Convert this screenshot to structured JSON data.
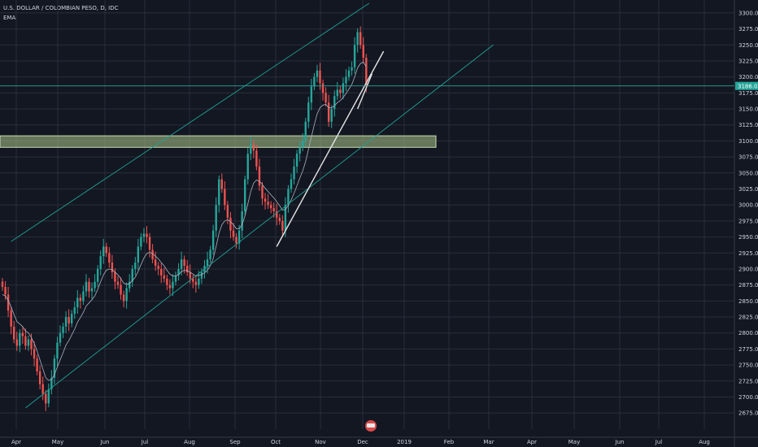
{
  "chart_data": {
    "type": "candlestick",
    "title": "U.S. DOLLAR / COLOMBIAN PESO, D, IDC",
    "indicator": "EMA",
    "y_ticks": [
      2675,
      2700,
      2725,
      2750,
      2775,
      2800,
      2825,
      2850,
      2875,
      2900,
      2925,
      2950,
      2975,
      3000,
      3025,
      3050,
      3075,
      3100,
      3125,
      3150,
      3175,
      3200,
      3225,
      3250,
      3275,
      3300
    ],
    "y_tick_labels": [
      "2675.00",
      "2700.00",
      "2725.00",
      "2750.00",
      "2775.00",
      "2800.00",
      "2825.00",
      "2850.00",
      "2875.00",
      "2900.00",
      "2925.00",
      "2950.00",
      "2975.00",
      "3000.00",
      "3025.00",
      "3050.00",
      "3075.00",
      "3100.00",
      "3125.00",
      "3150.00",
      "3175.00",
      "3200.00",
      "3225.00",
      "3250.00",
      "3275.00",
      "3300.00"
    ],
    "ylim": [
      2660,
      3310
    ],
    "x_labels": [
      "Apr",
      "May",
      "Jun",
      "Jul",
      "Aug",
      "Sep",
      "Oct",
      "Nov",
      "Dec",
      "2019",
      "Feb",
      "Mar",
      "Apr",
      "May",
      "Jun",
      "Jul",
      "Aug"
    ],
    "last_price": 3186.0,
    "last_price_label": "3186.00",
    "close": [
      2872,
      2860,
      2835,
      2810,
      2790,
      2780,
      2800,
      2795,
      2780,
      2790,
      2775,
      2760,
      2740,
      2720,
      2705,
      2690,
      2712,
      2730,
      2760,
      2785,
      2800,
      2810,
      2825,
      2815,
      2830,
      2840,
      2855,
      2850,
      2865,
      2880,
      2865,
      2870,
      2880,
      2900,
      2920,
      2935,
      2925,
      2910,
      2895,
      2880,
      2875,
      2860,
      2850,
      2870,
      2880,
      2900,
      2910,
      2935,
      2950,
      2955,
      2950,
      2930,
      2915,
      2905,
      2900,
      2890,
      2885,
      2875,
      2870,
      2880,
      2890,
      2900,
      2915,
      2905,
      2895,
      2885,
      2880,
      2875,
      2885,
      2895,
      2905,
      2915,
      2930,
      2960,
      3000,
      3040,
      3025,
      3000,
      2980,
      2960,
      2950,
      2940,
      2960,
      2990,
      3040,
      3080,
      3095,
      3085,
      3060,
      3030,
      3010,
      3005,
      3000,
      2995,
      2990,
      2980,
      2975,
      2960,
      3000,
      3025,
      3040,
      3060,
      3080,
      3090,
      3100,
      3130,
      3160,
      3185,
      3200,
      3210,
      3190,
      3175,
      3160,
      3130,
      3150,
      3170,
      3180,
      3175,
      3190,
      3200,
      3210,
      3215,
      3250,
      3270,
      3250,
      3230,
      3186
    ],
    "ema": [
      2860,
      2858,
      2851,
      2841,
      2829,
      2818,
      2814,
      2810,
      2803,
      2800,
      2793,
      2784,
      2772,
      2758,
      2744,
      2730,
      2726,
      2727,
      2735,
      2747,
      2758,
      2769,
      2781,
      2788,
      2797,
      2806,
      2817,
      2824,
      2832,
      2842,
      2847,
      2852,
      2858,
      2868,
      2880,
      2891,
      2898,
      2900,
      2899,
      2895,
      2891,
      2885,
      2878,
      2876,
      2877,
      2882,
      2887,
      2896,
      2907,
      2917,
      2924,
      2926,
      2924,
      2920,
      2916,
      2910,
      2905,
      2898,
      2892,
      2889,
      2889,
      2891,
      2896,
      2898,
      2897,
      2895,
      2892,
      2889,
      2890,
      2891,
      2894,
      2898,
      2905,
      2916,
      2935,
      2956,
      2969,
      2975,
      2977,
      2974,
      2969,
      2963,
      2963,
      2969,
      2983,
      3002,
      3021,
      3034,
      3039,
      3037,
      3032,
      3026,
      3021,
      3016,
      3011,
      3005,
      2999,
      2992,
      2993,
      2999,
      3008,
      3018,
      3030,
      3042,
      3053,
      3068,
      3087,
      3106,
      3125,
      3142,
      3152,
      3156,
      3157,
      3152,
      3152,
      3155,
      3160,
      3163,
      3168,
      3174,
      3181,
      3188,
      3200,
      3214,
      3221,
      3223,
      3216
    ],
    "zone": [
      3090,
      3108
    ],
    "lines": [
      {
        "kind": "channel-upper",
        "from": [
          3,
          2943
        ],
        "to": [
          127,
          3315
        ]
      },
      {
        "kind": "channel-lower",
        "from": [
          8,
          2683
        ],
        "to": [
          170,
          3250
        ]
      },
      {
        "kind": "trendline",
        "from": [
          95,
          2935
        ],
        "to": [
          132,
          3240
        ]
      },
      {
        "kind": "trendline-small",
        "from": [
          123,
          3150
        ],
        "to": [
          128,
          3205
        ]
      }
    ],
    "colors": {
      "background": "#131722",
      "grid": "#2a2e39",
      "up": "#26a69a",
      "down": "#ef5350",
      "ema": "#aab3c2",
      "channel": "#1fa194",
      "trendline": "#e6e6e6",
      "zone_fill": "#a9c48a",
      "price_line": "#26a69a",
      "text": "#d1d4dc"
    },
    "grid": true
  }
}
